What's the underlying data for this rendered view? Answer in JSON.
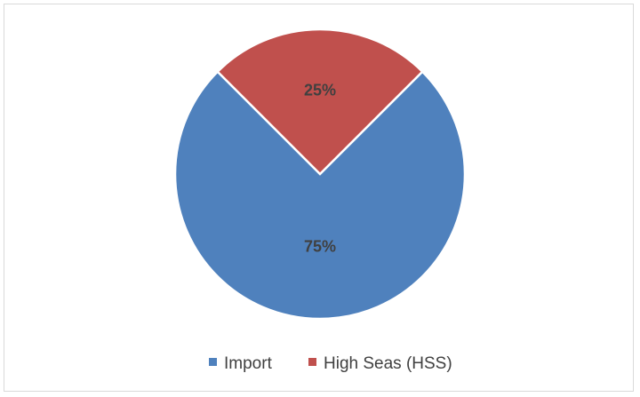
{
  "chart_data": {
    "type": "pie",
    "title": "",
    "categories": [
      "Import",
      "High Seas (HSS)"
    ],
    "values": [
      75,
      25
    ],
    "data_labels": [
      "75%",
      "25%"
    ],
    "colors": [
      "#4f81bd",
      "#c0504d"
    ],
    "start_angle_deg": -45,
    "legend": {
      "position": "bottom",
      "entries": [
        "Import",
        "High Seas (HSS)"
      ]
    }
  }
}
